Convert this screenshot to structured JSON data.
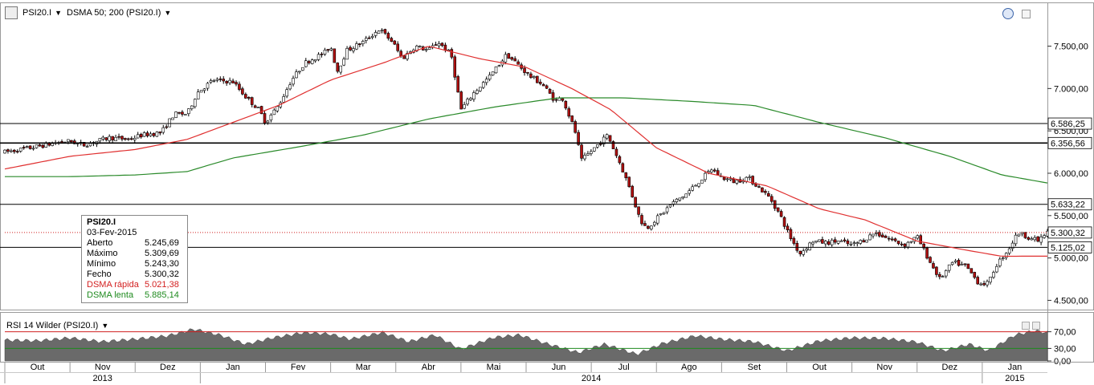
{
  "toolbar": {
    "symbol": "PSI20.I",
    "indicator": "DSMA 50; 200 (PSI20.I)"
  },
  "info_box": {
    "title": "PSI20.I",
    "date": "03-Fev-2015",
    "rows": [
      {
        "label": "Aberto",
        "value": "5.245,69",
        "kind": "normal"
      },
      {
        "label": "Máximo",
        "value": "5.309,69",
        "kind": "normal"
      },
      {
        "label": "Mínimo",
        "value": "5.243,30",
        "kind": "normal"
      },
      {
        "label": "Fecho",
        "value": "5.300,32",
        "kind": "normal"
      },
      {
        "label": "DSMA rápida",
        "value": "5.021,38",
        "kind": "red"
      },
      {
        "label": "DSMA lenta",
        "value": "5.885,14",
        "kind": "green"
      }
    ]
  },
  "rsi_panel": {
    "title": "RSI 14 Wilder (PSI20.I)"
  },
  "colors": {
    "up_candle": "#ffffff",
    "down_candle": "#b01010",
    "fast_ma": "#e03030",
    "slow_ma": "#2a8a2a",
    "rsi_fill": "#6a6a6a",
    "rsi_upper_line": "#d02020",
    "rsi_lower_line": "#1e8a1e"
  },
  "chart_data": [
    {
      "type": "candlestick",
      "title": "PSI20.I",
      "ylim": [
        4400,
        7950
      ],
      "y_ticks": [
        {
          "value": 7500,
          "label": "7.500,00"
        },
        {
          "value": 7000,
          "label": "7.000,00"
        },
        {
          "value": 6500,
          "label": "6.500,00"
        },
        {
          "value": 6000,
          "label": "6.000,00"
        },
        {
          "value": 5500,
          "label": "5.500,00"
        },
        {
          "value": 5000,
          "label": "5.000,00"
        },
        {
          "value": 4500,
          "label": "4.500,00"
        }
      ],
      "horizontal_lines": [
        {
          "value": 6586.25,
          "label": "6.586,25",
          "style": "solid"
        },
        {
          "value": 6356.56,
          "label": "6.356,56",
          "style": "solid"
        },
        {
          "value": 5633.22,
          "label": "5.633,22",
          "style": "solid"
        },
        {
          "value": 5300.32,
          "label": "5.300,32",
          "style": "dotted-red"
        },
        {
          "value": 5125.02,
          "label": "5.125,02",
          "style": "solid"
        }
      ],
      "price_path": [
        {
          "m": 0.0,
          "v": 6250
        },
        {
          "m": 0.4,
          "v": 6300
        },
        {
          "m": 0.8,
          "v": 6360
        },
        {
          "m": 1.0,
          "v": 6380
        },
        {
          "m": 1.2,
          "v": 6330
        },
        {
          "m": 1.6,
          "v": 6420
        },
        {
          "m": 1.9,
          "v": 6400
        },
        {
          "m": 2.1,
          "v": 6450
        },
        {
          "m": 2.4,
          "v": 6480
        },
        {
          "m": 2.6,
          "v": 6700
        },
        {
          "m": 2.8,
          "v": 6700
        },
        {
          "m": 2.95,
          "v": 6950
        },
        {
          "m": 3.2,
          "v": 7100
        },
        {
          "m": 3.5,
          "v": 7080
        },
        {
          "m": 3.7,
          "v": 6900
        },
        {
          "m": 3.9,
          "v": 6750
        },
        {
          "m": 4.0,
          "v": 6600
        },
        {
          "m": 4.2,
          "v": 6800
        },
        {
          "m": 4.4,
          "v": 7100
        },
        {
          "m": 4.6,
          "v": 7300
        },
        {
          "m": 4.9,
          "v": 7420
        },
        {
          "m": 5.0,
          "v": 7500
        },
        {
          "m": 5.1,
          "v": 7200
        },
        {
          "m": 5.25,
          "v": 7450
        },
        {
          "m": 5.5,
          "v": 7550
        },
        {
          "m": 5.75,
          "v": 7700
        },
        {
          "m": 5.95,
          "v": 7550
        },
        {
          "m": 6.1,
          "v": 7350
        },
        {
          "m": 6.3,
          "v": 7500
        },
        {
          "m": 6.5,
          "v": 7450
        },
        {
          "m": 6.65,
          "v": 7550
        },
        {
          "m": 6.85,
          "v": 7400
        },
        {
          "m": 7.0,
          "v": 6750
        },
        {
          "m": 7.2,
          "v": 6950
        },
        {
          "m": 7.45,
          "v": 7150
        },
        {
          "m": 7.7,
          "v": 7400
        },
        {
          "m": 7.85,
          "v": 7300
        },
        {
          "m": 8.05,
          "v": 7150
        },
        {
          "m": 8.25,
          "v": 7050
        },
        {
          "m": 8.45,
          "v": 6850
        },
        {
          "m": 8.55,
          "v": 6900
        },
        {
          "m": 8.75,
          "v": 6500
        },
        {
          "m": 8.85,
          "v": 6150
        },
        {
          "m": 9.05,
          "v": 6300
        },
        {
          "m": 9.25,
          "v": 6450
        },
        {
          "m": 9.45,
          "v": 6100
        },
        {
          "m": 9.6,
          "v": 5800
        },
        {
          "m": 9.75,
          "v": 5450
        },
        {
          "m": 9.85,
          "v": 5350
        },
        {
          "m": 10.05,
          "v": 5500
        },
        {
          "m": 10.25,
          "v": 5650
        },
        {
          "m": 10.45,
          "v": 5750
        },
        {
          "m": 10.65,
          "v": 5900
        },
        {
          "m": 10.85,
          "v": 6050
        },
        {
          "m": 11.0,
          "v": 5950
        },
        {
          "m": 11.2,
          "v": 5900
        },
        {
          "m": 11.4,
          "v": 5950
        },
        {
          "m": 11.55,
          "v": 5850
        },
        {
          "m": 11.75,
          "v": 5700
        },
        {
          "m": 11.9,
          "v": 5500
        },
        {
          "m": 12.05,
          "v": 5250
        },
        {
          "m": 12.2,
          "v": 5050
        },
        {
          "m": 12.4,
          "v": 5200
        },
        {
          "m": 12.6,
          "v": 5180
        },
        {
          "m": 12.8,
          "v": 5200
        },
        {
          "m": 13.0,
          "v": 5150
        },
        {
          "m": 13.2,
          "v": 5220
        },
        {
          "m": 13.35,
          "v": 5300
        },
        {
          "m": 13.5,
          "v": 5250
        },
        {
          "m": 13.65,
          "v": 5200
        },
        {
          "m": 13.8,
          "v": 5150
        },
        {
          "m": 14.0,
          "v": 5250
        },
        {
          "m": 14.2,
          "v": 4950
        },
        {
          "m": 14.35,
          "v": 4750
        },
        {
          "m": 14.55,
          "v": 4950
        },
        {
          "m": 14.75,
          "v": 4900
        },
        {
          "m": 14.95,
          "v": 4700
        },
        {
          "m": 15.1,
          "v": 4700
        },
        {
          "m": 15.2,
          "v": 4900
        },
        {
          "m": 15.4,
          "v": 5100
        },
        {
          "m": 15.55,
          "v": 5300
        },
        {
          "m": 15.7,
          "v": 5250
        },
        {
          "m": 15.85,
          "v": 5200
        },
        {
          "m": 16.0,
          "v": 5300
        }
      ],
      "fast_ma": [
        {
          "m": 0.0,
          "v": 6050
        },
        {
          "m": 1.0,
          "v": 6200
        },
        {
          "m": 2.0,
          "v": 6280
        },
        {
          "m": 2.8,
          "v": 6400
        },
        {
          "m": 3.5,
          "v": 6600
        },
        {
          "m": 4.2,
          "v": 6800
        },
        {
          "m": 5.0,
          "v": 7100
        },
        {
          "m": 5.8,
          "v": 7300
        },
        {
          "m": 6.5,
          "v": 7500
        },
        {
          "m": 7.3,
          "v": 7350
        },
        {
          "m": 8.0,
          "v": 7250
        },
        {
          "m": 8.7,
          "v": 7000
        },
        {
          "m": 9.3,
          "v": 6750
        },
        {
          "m": 10.0,
          "v": 6300
        },
        {
          "m": 10.8,
          "v": 6000
        },
        {
          "m": 11.7,
          "v": 5850
        },
        {
          "m": 12.5,
          "v": 5580
        },
        {
          "m": 13.2,
          "v": 5450
        },
        {
          "m": 14.0,
          "v": 5200
        },
        {
          "m": 14.7,
          "v": 5100
        },
        {
          "m": 15.3,
          "v": 5020
        },
        {
          "m": 16.0,
          "v": 5021.38
        }
      ],
      "slow_ma": [
        {
          "m": 0.0,
          "v": 5960
        },
        {
          "m": 1.0,
          "v": 5960
        },
        {
          "m": 2.0,
          "v": 5980
        },
        {
          "m": 2.8,
          "v": 6020
        },
        {
          "m": 3.5,
          "v": 6180
        },
        {
          "m": 4.5,
          "v": 6310
        },
        {
          "m": 5.5,
          "v": 6450
        },
        {
          "m": 6.5,
          "v": 6640
        },
        {
          "m": 7.5,
          "v": 6780
        },
        {
          "m": 8.5,
          "v": 6890
        },
        {
          "m": 9.5,
          "v": 6890
        },
        {
          "m": 10.5,
          "v": 6850
        },
        {
          "m": 11.5,
          "v": 6800
        },
        {
          "m": 12.5,
          "v": 6600
        },
        {
          "m": 13.5,
          "v": 6420
        },
        {
          "m": 14.5,
          "v": 6200
        },
        {
          "m": 15.3,
          "v": 5980
        },
        {
          "m": 16.0,
          "v": 5885.14
        }
      ]
    },
    {
      "type": "area",
      "title": "RSI 14 Wilder (PSI20.I)",
      "ylim": [
        0,
        100
      ],
      "y_ticks": [
        {
          "value": 70,
          "label": "70,00"
        },
        {
          "value": 30,
          "label": "30,00"
        },
        {
          "value": 0,
          "label": "0,00"
        }
      ],
      "levels": [
        70,
        30
      ],
      "rsi_path": [
        {
          "m": 0.0,
          "v": 50
        },
        {
          "m": 0.5,
          "v": 48
        },
        {
          "m": 1.0,
          "v": 55
        },
        {
          "m": 1.5,
          "v": 46
        },
        {
          "m": 2.0,
          "v": 52
        },
        {
          "m": 2.5,
          "v": 60
        },
        {
          "m": 2.9,
          "v": 76
        },
        {
          "m": 3.3,
          "v": 62
        },
        {
          "m": 3.7,
          "v": 40
        },
        {
          "m": 4.1,
          "v": 55
        },
        {
          "m": 4.6,
          "v": 68
        },
        {
          "m": 5.0,
          "v": 64
        },
        {
          "m": 5.3,
          "v": 52
        },
        {
          "m": 5.8,
          "v": 68
        },
        {
          "m": 6.2,
          "v": 46
        },
        {
          "m": 6.6,
          "v": 62
        },
        {
          "m": 7.0,
          "v": 28
        },
        {
          "m": 7.5,
          "v": 56
        },
        {
          "m": 7.9,
          "v": 62
        },
        {
          "m": 8.3,
          "v": 42
        },
        {
          "m": 8.8,
          "v": 20
        },
        {
          "m": 9.2,
          "v": 40
        },
        {
          "m": 9.7,
          "v": 16
        },
        {
          "m": 10.1,
          "v": 42
        },
        {
          "m": 10.6,
          "v": 60
        },
        {
          "m": 11.0,
          "v": 52
        },
        {
          "m": 11.5,
          "v": 46
        },
        {
          "m": 12.0,
          "v": 24
        },
        {
          "m": 12.5,
          "v": 48
        },
        {
          "m": 13.0,
          "v": 55
        },
        {
          "m": 13.5,
          "v": 54
        },
        {
          "m": 14.0,
          "v": 45
        },
        {
          "m": 14.4,
          "v": 24
        },
        {
          "m": 14.8,
          "v": 40
        },
        {
          "m": 15.1,
          "v": 24
        },
        {
          "m": 15.5,
          "v": 62
        },
        {
          "m": 15.8,
          "v": 72
        },
        {
          "m": 16.0,
          "v": 68
        }
      ]
    }
  ],
  "x_axis": {
    "months": [
      "Out",
      "Nov",
      "Dez",
      "Jan",
      "Fev",
      "Mar",
      "Abr",
      "Mai",
      "Jun",
      "Jul",
      "Ago",
      "Set",
      "Out",
      "Nov",
      "Dez",
      "Jan"
    ],
    "years": [
      {
        "label": "2013",
        "start": 0,
        "end": 3
      },
      {
        "label": "2014",
        "start": 3,
        "end": 15
      },
      {
        "label": "2015",
        "start": 15,
        "end": 16
      }
    ]
  }
}
